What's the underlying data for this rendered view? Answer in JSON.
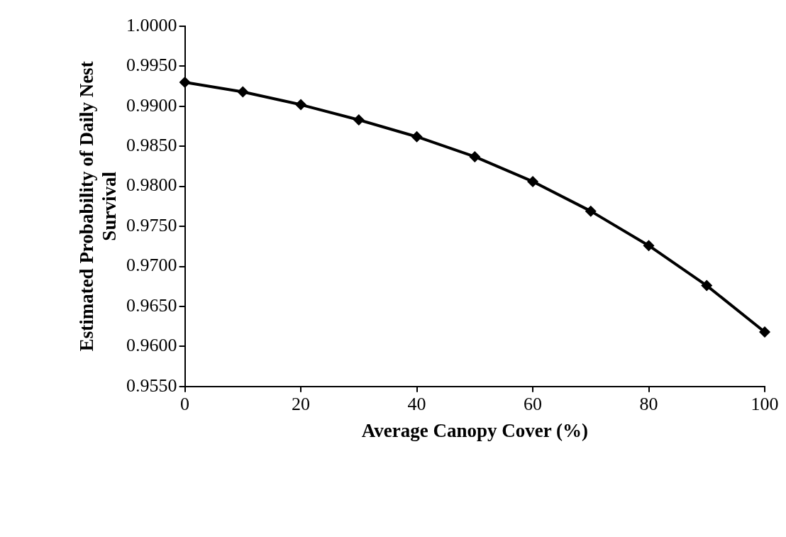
{
  "chart_data": {
    "type": "line",
    "xlabel": "Average Canopy Cover (%)",
    "ylabel": "Estimated Probability of Daily Nest Survival",
    "x": [
      0,
      10,
      20,
      30,
      40,
      50,
      60,
      70,
      80,
      90,
      100
    ],
    "series": [
      {
        "color": "#000000",
        "values": [
          0.993,
          0.9918,
          0.9902,
          0.9883,
          0.9862,
          0.9837,
          0.9806,
          0.9769,
          0.9726,
          0.9676,
          0.9618
        ]
      }
    ],
    "xlim": [
      0,
      100
    ],
    "xticks": [
      0,
      20,
      40,
      60,
      80,
      100
    ],
    "ylim": [
      0.955,
      1.0
    ],
    "yticks": [
      {
        "value": 0.955,
        "label": "0.9550"
      },
      {
        "value": 0.96,
        "label": "0.9600"
      },
      {
        "value": 0.965,
        "label": "0.9650"
      },
      {
        "value": 0.97,
        "label": "0.9700"
      },
      {
        "value": 0.975,
        "label": "0.9750"
      },
      {
        "value": 0.98,
        "label": "0.9800"
      },
      {
        "value": 0.985,
        "label": "0.9850"
      },
      {
        "value": 0.99,
        "label": "0.9900"
      },
      {
        "value": 0.995,
        "label": "0.9950"
      },
      {
        "value": 1.0,
        "label": "1.0000"
      }
    ],
    "grid": false,
    "legend": false,
    "marker": "diamond",
    "line_style": "solid"
  }
}
